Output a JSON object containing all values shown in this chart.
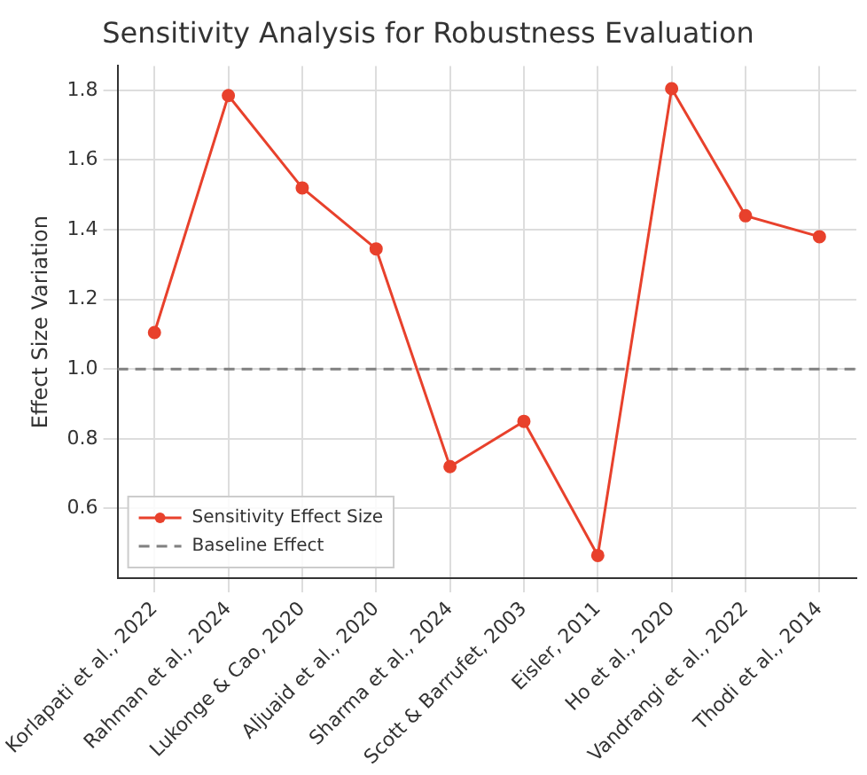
{
  "chart_data": {
    "type": "line",
    "title": "Sensitivity Analysis for Robustness Evaluation",
    "ylabel": "Effect Size Variation",
    "categories": [
      "Korlapati et al., 2022",
      "Rahman et al., 2024",
      "Lukonge & Cao, 2020",
      "Aljuaid et al., 2020",
      "Sharma et al., 2024",
      "Scott & Barrufet, 2003",
      "Eisler, 2011",
      "Ho et al., 2020",
      "Vandrangi et al., 2022",
      "Thodi et al., 2014"
    ],
    "series": [
      {
        "name": "Sensitivity Effect Size",
        "color": "#e8412c",
        "values": [
          1.105,
          1.785,
          1.52,
          1.345,
          0.72,
          0.85,
          0.465,
          1.805,
          1.44,
          1.38
        ]
      }
    ],
    "ref_lines": [
      {
        "axis": "y",
        "value": 1.0,
        "label": "Baseline Effect",
        "color": "#808080",
        "line_style": "dashed"
      }
    ],
    "ylim": [
      0.4,
      1.87
    ],
    "yticks": [
      0.6,
      0.8,
      {
        "value": 1,
        "label": "1.0"
      },
      1.2,
      1.4,
      1.6,
      1.8
    ],
    "grid": true,
    "legend": "bottom left",
    "marker": "circle",
    "line_style": "solid"
  }
}
